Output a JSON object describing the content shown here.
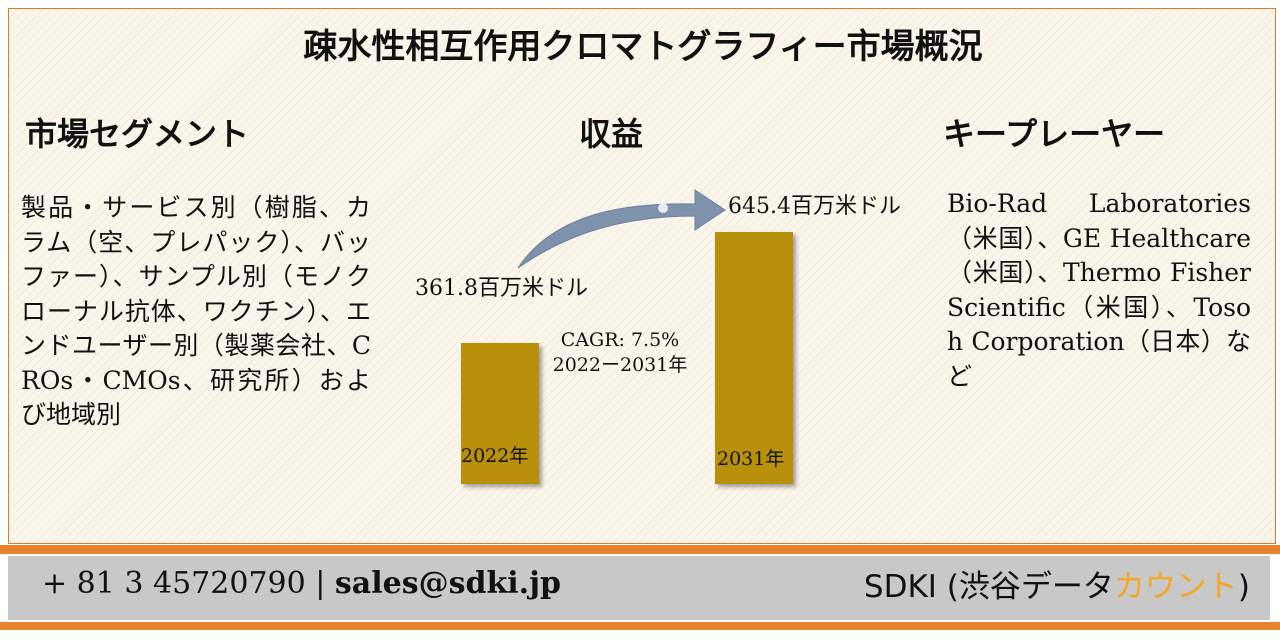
{
  "title": "疎水性相互作用クロマトグラフィー市場概況",
  "segments": {
    "heading": "市場セグメント",
    "text": "製品・サービス別（樹脂、カラム（空、プレパック）、バッファー）、サンプル別（モノクローナル抗体、ワクチン）、エンドユーザー別（製薬会社、CROs・CMOs、研究所）および地域別"
  },
  "revenue": {
    "heading": "収益",
    "cagr_line1": "CAGR: 7.5%",
    "cagr_line2": "2022ー2031年"
  },
  "players": {
    "heading": "キープレーヤー",
    "text": "Bio-Rad Laboratories（米国）、GE Healthcare（米国）、Thermo Fisher Scientific（米国）、Tosoh Corporation（日本）など"
  },
  "chart_data": {
    "type": "bar",
    "categories": [
      "2022年",
      "2031年"
    ],
    "values": [
      361.8,
      645.4
    ],
    "data_labels": [
      "361.8百万米ドル",
      "645.4百万米ドル"
    ],
    "unit": "百万米ドル",
    "bar_color": "#b8900a"
  },
  "footer": {
    "contact_phone": "+ 81 3 45720790",
    "separator": "|",
    "contact_email": "sales@sdki.jp",
    "brand_main": "SDKI (渋谷データ",
    "brand_accent": "カウント",
    "brand_end": ")",
    "accent_color": "#f5a623",
    "stripe_color": "#e8822c"
  }
}
